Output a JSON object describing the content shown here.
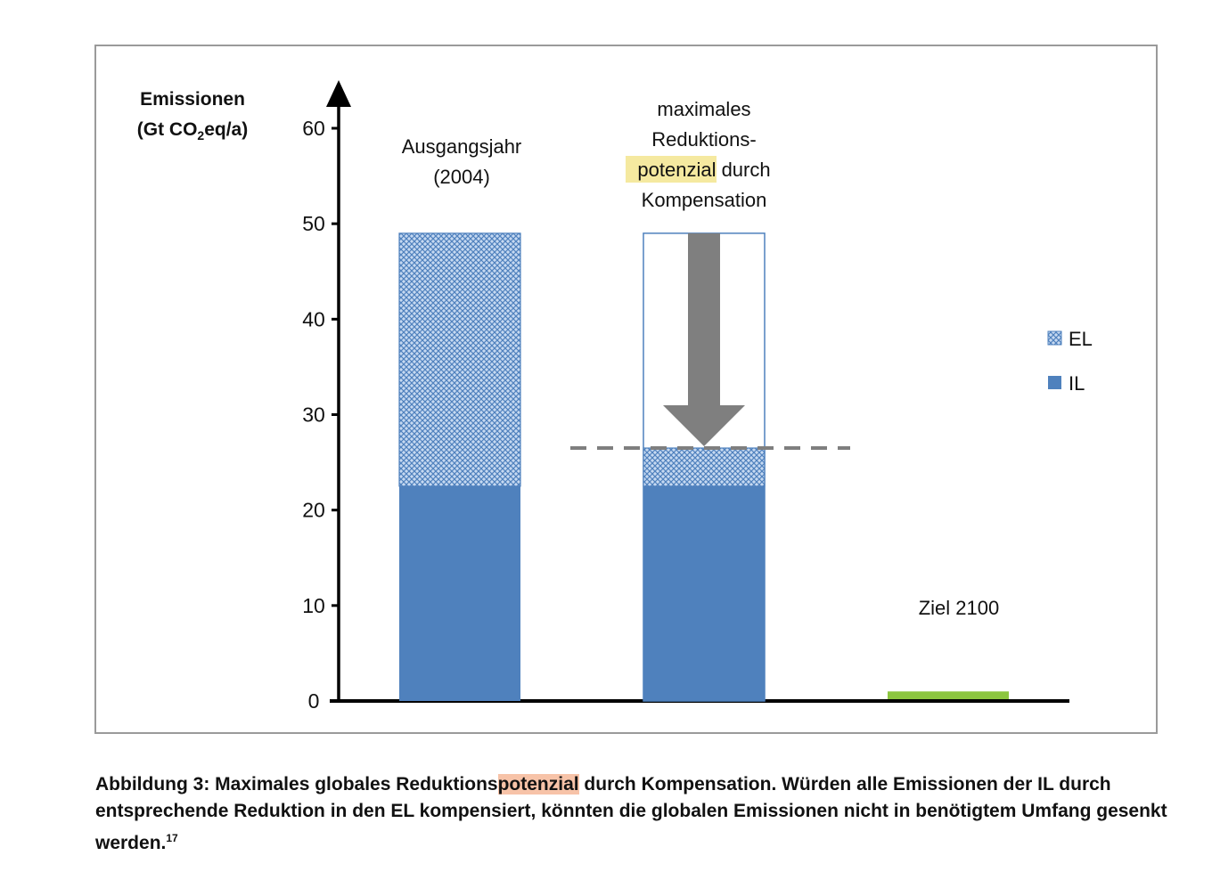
{
  "chart_data": {
    "type": "bar",
    "stacked": true,
    "ylabel_line1": "Emissionen",
    "ylabel_line2_prefix": "(Gt CO",
    "ylabel_line2_sub": "2",
    "ylabel_line2_suffix": "eq/a)",
    "ylim": [
      0,
      60
    ],
    "yticks": [
      0,
      10,
      20,
      30,
      40,
      50,
      60
    ],
    "bars": [
      {
        "label_lines": [
          "Ausgangsjahr",
          "(2004)"
        ],
        "IL": 22.5,
        "EL": 26.5
      },
      {
        "label_lines": [
          "maximales",
          "Reduktions-",
          "potenzial durch",
          "Kompensation"
        ],
        "IL": 22.5,
        "EL": 4,
        "outline_top": 49
      },
      {
        "label_lines": [
          "Ziel 2100"
        ],
        "target": 1
      }
    ],
    "reference_line": 26.5,
    "legend": [
      {
        "name": "EL",
        "pattern": "crosshatch"
      },
      {
        "name": "IL",
        "pattern": "solid"
      }
    ],
    "legend_position": "right",
    "colors": {
      "IL": "#4f81bd",
      "EL_fill": "#c6d9f1",
      "target": "#8cc63f",
      "arrow": "#7f7f7f",
      "highlight_yellow": "#f5e9a0",
      "highlight_orange": "#f7c3a8"
    }
  },
  "caption": {
    "prefix": "Abbildung 3: Maximales globales Reduktions",
    "highlight": "potenzial",
    "suffix": " durch Kompensation. Würden alle Emissionen der IL durch entsprechende Reduktion in den EL kompensiert, könnten die globalen Emissionen nicht in benötigtem Umfang gesenkt werden.",
    "footnote": "17"
  }
}
